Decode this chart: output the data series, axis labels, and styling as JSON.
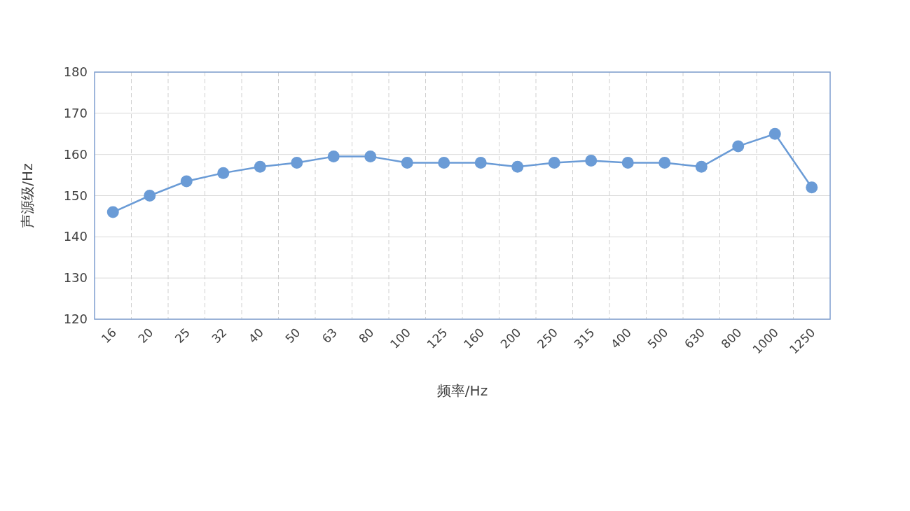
{
  "chart_data": {
    "type": "line",
    "xlabel": "频率/Hz",
    "ylabel": "声源级/Hz",
    "categories": [
      "16",
      "20",
      "25",
      "32",
      "40",
      "50",
      "63",
      "80",
      "100",
      "125",
      "160",
      "200",
      "250",
      "315",
      "400",
      "500",
      "630",
      "800",
      "1000",
      "1250"
    ],
    "series": [
      {
        "color": "#6a9bd6",
        "values": [
          146,
          150,
          153.5,
          155.5,
          157,
          158,
          159.5,
          159.5,
          158,
          158,
          158,
          157,
          158,
          158.5,
          158,
          158,
          157,
          162,
          165,
          152
        ]
      }
    ],
    "ylim": [
      120,
      180
    ],
    "yticks": [
      120,
      130,
      140,
      150,
      160,
      170,
      180
    ],
    "grid": true,
    "marker": "circle",
    "line_style": "solid"
  }
}
